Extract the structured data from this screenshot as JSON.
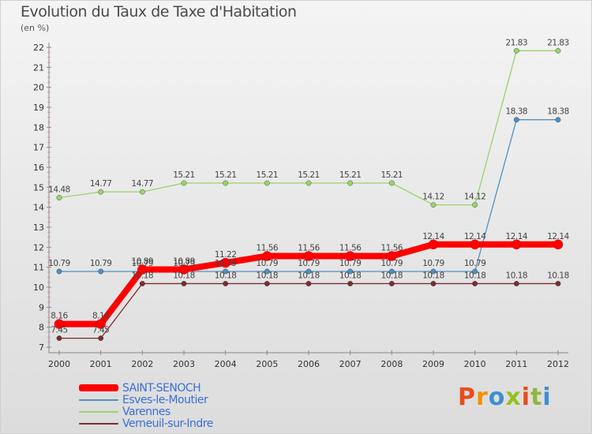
{
  "header": {
    "title": "Evolution du Taux de Taxe d'Habitation",
    "subtitle": "(en %)"
  },
  "logo": {
    "text": "Proxiti",
    "colors": [
      "#e84d1c",
      "#f39200",
      "#3e8ed0",
      "#95c11f",
      "#e84d1c",
      "#8fb73e",
      "#3e8ed0"
    ]
  },
  "chart_data": {
    "type": "line",
    "x": [
      "2000",
      "2001",
      "2002",
      "2003",
      "2004",
      "2005",
      "2006",
      "2007",
      "2008",
      "2009",
      "2010",
      "2011",
      "2012"
    ],
    "ylim": [
      7,
      22
    ],
    "yticks": [
      7,
      8,
      9,
      10,
      11,
      12,
      13,
      14,
      15,
      16,
      17,
      18,
      19,
      20,
      21,
      22
    ],
    "grid": false,
    "legend_position": "bottom-left",
    "series": [
      {
        "name": "SAINT-SENOCH",
        "color": "#ff0000",
        "values": [
          8.16,
          8.16,
          10.89,
          10.89,
          11.22,
          11.56,
          11.56,
          11.56,
          11.56,
          12.14,
          12.14,
          12.14,
          12.14
        ],
        "labels": [
          "8.16",
          "8.16",
          "10.89",
          "10.89",
          "11.22",
          "11.56",
          "11.56",
          "11.56",
          "11.56",
          "12.14",
          "12.14",
          "12.14",
          "12.14"
        ]
      },
      {
        "name": "Esves-le-Moutier",
        "color": "#4f8fc7",
        "values": [
          10.79,
          10.79,
          10.79,
          10.79,
          10.79,
          10.79,
          10.79,
          10.79,
          10.79,
          10.79,
          10.79,
          18.38,
          18.38
        ],
        "labels": [
          "10.79",
          "10.79",
          "10.79",
          "10.79",
          "10.79",
          "10.79",
          "10.79",
          "10.79",
          "10.79",
          "10.79",
          "10.79",
          "18.38",
          "18.38"
        ]
      },
      {
        "name": "Varennes",
        "color": "#99d36b",
        "values": [
          14.48,
          14.77,
          14.77,
          15.21,
          15.21,
          15.21,
          15.21,
          15.21,
          15.21,
          14.12,
          14.12,
          21.83,
          21.83
        ],
        "labels": [
          "14.48",
          "14.77",
          "14.77",
          "15.21",
          "15.21",
          "15.21",
          "15.21",
          "15.21",
          "15.21",
          "14.12",
          "14.12",
          "21.83",
          "21.83"
        ]
      },
      {
        "name": "Verneuil-sur-Indre",
        "color": "#7a2e2e",
        "values": [
          7.45,
          7.45,
          10.18,
          10.18,
          10.18,
          10.18,
          10.18,
          10.18,
          10.18,
          10.18,
          10.18,
          10.18,
          10.18
        ],
        "labels": [
          "7.45",
          "7.45",
          "10.18",
          "10.18",
          "10.18",
          "10.18",
          "10.18",
          "10.18",
          "10.18",
          "10.18",
          "10.18",
          "10.18",
          "10.18"
        ]
      }
    ]
  }
}
